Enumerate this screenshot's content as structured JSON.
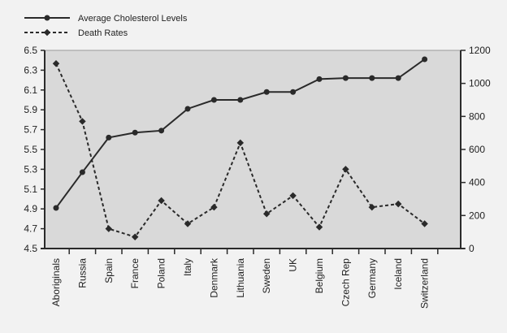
{
  "chart_data": {
    "type": "line",
    "categories": [
      "Aboriginals",
      "Russia",
      "Spain",
      "France",
      "Poland",
      "Italy",
      "Denmark",
      "Lithuania",
      "Sweden",
      "UK",
      "Belgium",
      "Czech Rep",
      "Germany",
      "Iceland",
      "Switzerland"
    ],
    "series": [
      {
        "name": "Average Cholesterol Levels",
        "axis": "left",
        "style": "solid",
        "values": [
          4.91,
          5.27,
          5.62,
          5.67,
          5.69,
          5.91,
          6.0,
          6.0,
          6.08,
          6.08,
          6.21,
          6.22,
          6.22,
          6.22,
          6.41
        ]
      },
      {
        "name": "Death Rates",
        "axis": "right",
        "style": "dashed",
        "values": [
          1120,
          770,
          120,
          70,
          290,
          150,
          250,
          640,
          210,
          320,
          130,
          480,
          250,
          270,
          150
        ]
      }
    ],
    "left_axis": {
      "range": [
        4.5,
        6.5
      ],
      "ticks": [
        "4.5",
        "4.7",
        "4.9",
        "5.1",
        "5.3",
        "5.5",
        "5.7",
        "5.9",
        "6.1",
        "6.3",
        "6.5"
      ]
    },
    "right_axis": {
      "range": [
        0,
        1200
      ],
      "ticks": [
        "0",
        "200",
        "400",
        "600",
        "800",
        "1000",
        "1200"
      ]
    },
    "legend_placement": "top-left",
    "grid": false,
    "colors": {
      "plot_bg": "#d9d9d9",
      "line": "#2a2a2a"
    }
  }
}
